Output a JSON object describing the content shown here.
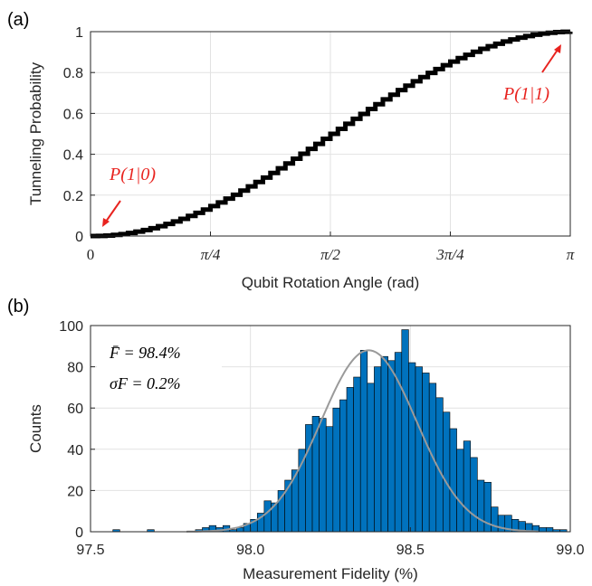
{
  "chart_data": [
    {
      "type": "line",
      "panel_label": "(a)",
      "xlabel": "Qubit Rotation Angle (rad)",
      "ylabel": "Tunneling Probability",
      "xlim": [
        0,
        3.14159
      ],
      "ylim": [
        0,
        1
      ],
      "xticks": [
        {
          "value": 0,
          "label": "0"
        },
        {
          "value": 0.7854,
          "label": "π/4"
        },
        {
          "value": 1.5708,
          "label": "π/2"
        },
        {
          "value": 2.3562,
          "label": "3π/4"
        },
        {
          "value": 3.14159,
          "label": "π"
        }
      ],
      "yticks": [
        {
          "value": 0,
          "label": "0"
        },
        {
          "value": 0.2,
          "label": "0.2"
        },
        {
          "value": 0.4,
          "label": "0.4"
        },
        {
          "value": 0.6,
          "label": "0.6"
        },
        {
          "value": 0.8,
          "label": "0.8"
        },
        {
          "value": 1,
          "label": "1"
        }
      ],
      "grid": true,
      "series": [
        {
          "color": "#000000",
          "function": "sin^2(x/2)",
          "points": 64
        }
      ],
      "annotations": [
        {
          "text": "P(1|0)",
          "color": "#e8231f",
          "arrow_to": [
            0.04,
            0.005
          ]
        },
        {
          "text": "P(1|1)",
          "color": "#e8231f",
          "arrow_to": [
            3.1,
            0.99
          ]
        }
      ]
    },
    {
      "type": "bar",
      "panel_label": "(b)",
      "xlabel": "Measurement Fidelity (%)",
      "ylabel": "Counts",
      "xlim": [
        97.5,
        99.0
      ],
      "ylim": [
        0,
        100
      ],
      "xticks": [
        {
          "value": 97.5,
          "label": "97.5"
        },
        {
          "value": 98.0,
          "label": "98.0"
        },
        {
          "value": 98.5,
          "label": "98.5"
        },
        {
          "value": 99.0,
          "label": "99.0"
        }
      ],
      "yticks": [
        {
          "value": 0,
          "label": "0"
        },
        {
          "value": 20,
          "label": "20"
        },
        {
          "value": 40,
          "label": "40"
        },
        {
          "value": 60,
          "label": "60"
        },
        {
          "value": 80,
          "label": "80"
        },
        {
          "value": 100,
          "label": "100"
        }
      ],
      "grid": true,
      "bar_color": "#0072bd",
      "bin_start": 97.57,
      "bin_width": 0.0215,
      "counts": [
        1,
        0,
        0,
        0,
        0,
        1,
        0,
        0,
        0,
        0,
        0,
        0,
        1,
        2,
        3,
        2,
        3,
        1,
        2,
        4,
        6,
        9,
        15,
        14,
        20,
        25,
        30,
        40,
        52,
        56,
        55,
        51,
        60,
        64,
        70,
        75,
        88,
        72,
        80,
        85,
        83,
        87,
        98,
        82,
        80,
        77,
        72,
        65,
        58,
        50,
        40,
        44,
        36,
        25,
        24,
        12,
        8,
        8,
        6,
        5,
        4,
        3,
        2,
        2,
        1,
        1
      ],
      "fit": {
        "type": "gaussian",
        "mean": 98.37,
        "sigma": 0.15,
        "peak": 88,
        "color": "#9a9a9a"
      },
      "stats": {
        "mean_label": "F̄ = 98.4%",
        "sigma_label": "σF = 0.2%"
      }
    }
  ]
}
